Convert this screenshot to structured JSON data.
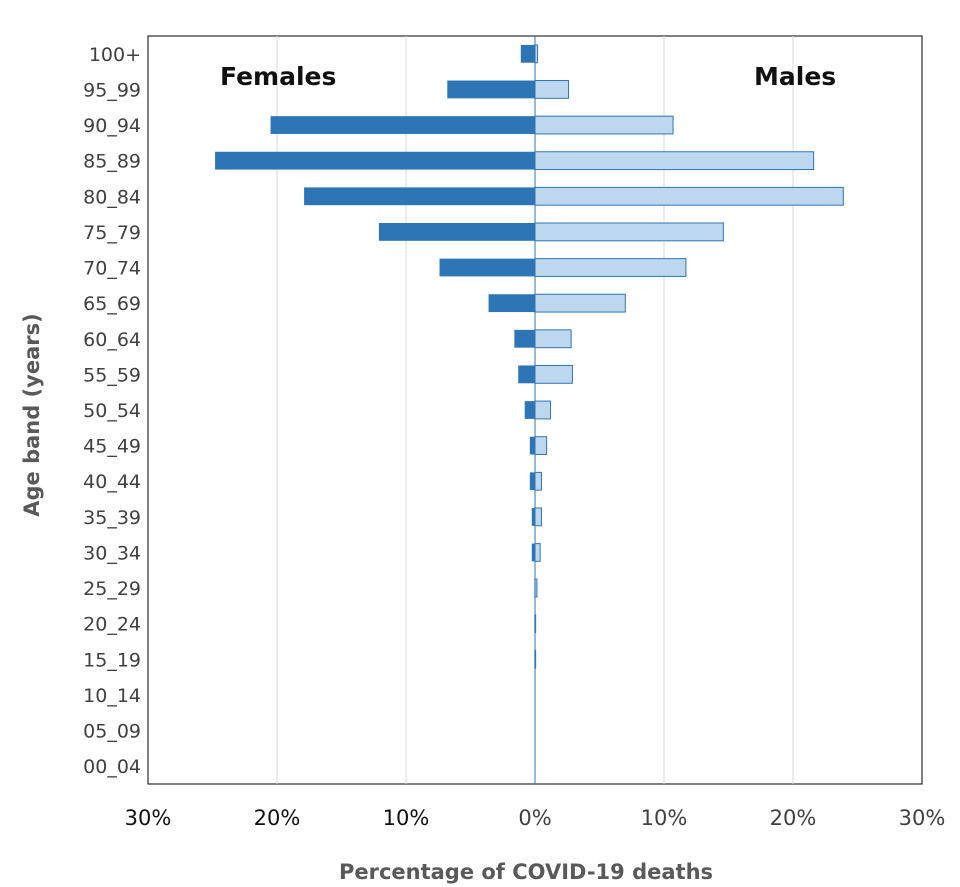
{
  "chart_data": {
    "type": "bar",
    "orientation": "horizontal",
    "layout": "population-pyramid",
    "xlabel": "Percentage of COVID-19 deaths",
    "ylabel": "Age band (years)",
    "xlim": [
      -30,
      30
    ],
    "xticks": [
      -30,
      -20,
      -10,
      0,
      10,
      20,
      30
    ],
    "xtick_labels": [
      "30%",
      "20%",
      "10%",
      "0%",
      "10%",
      "20%",
      "30%"
    ],
    "grid": true,
    "annotations": [
      "Females",
      "Males"
    ],
    "categories": [
      "100+",
      "95_99",
      "90_94",
      "85_89",
      "80_84",
      "75_79",
      "70_74",
      "65_69",
      "60_64",
      "55_59",
      "50_54",
      "45_49",
      "40_44",
      "35_39",
      "30_34",
      "25_29",
      "20_24",
      "15_19",
      "10_14",
      "05_09",
      "00_04"
    ],
    "series": [
      {
        "color": "#2e75b6",
        "values": [
          1.1,
          6.8,
          20.5,
          24.8,
          17.9,
          12.1,
          7.4,
          3.6,
          1.6,
          1.3,
          0.8,
          0.4,
          0.4,
          0.25,
          0.25,
          0.05,
          0.05,
          0.05,
          0,
          0,
          0
        ]
      },
      {
        "color": "#bdd7ee",
        "values": [
          0.2,
          2.6,
          10.7,
          21.6,
          23.9,
          14.6,
          11.7,
          7.0,
          2.8,
          2.9,
          1.2,
          0.9,
          0.5,
          0.5,
          0.4,
          0.15,
          0.05,
          0.05,
          0,
          0,
          0
        ]
      }
    ]
  }
}
